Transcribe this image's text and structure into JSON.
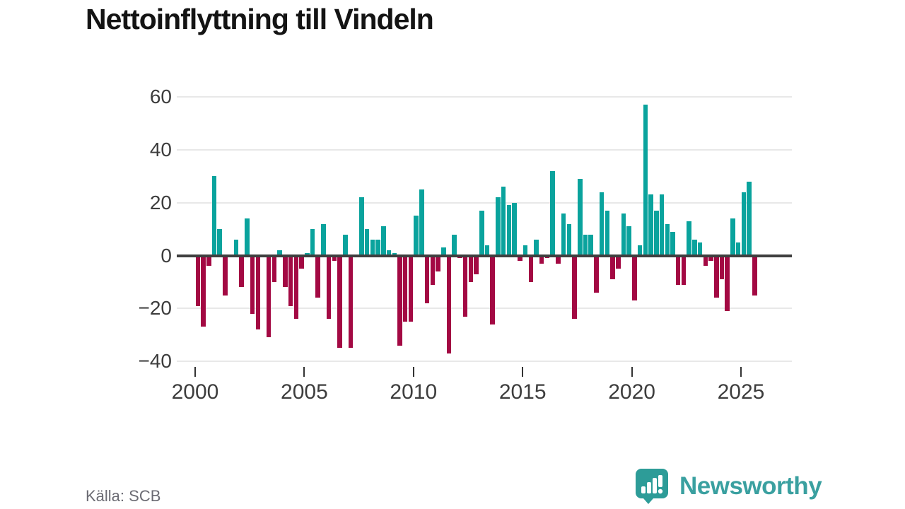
{
  "header": {
    "title": "Nettoinflyttning till Vindeln"
  },
  "footer": {
    "source": "Källa: SCB",
    "brand": "Newsworthy"
  },
  "chart_data": {
    "type": "bar",
    "title": "Nettoinflyttning till Vindeln",
    "source": "Källa: SCB",
    "x_unit": "quarter",
    "start_period": "2000-Q1",
    "end_period": "2025-Q3",
    "values": [
      -19,
      -27,
      -4,
      30,
      10,
      -15,
      0,
      6,
      -12,
      14,
      -22,
      -28,
      0,
      -31,
      -10,
      2,
      -12,
      -19,
      -24,
      -5,
      1,
      10,
      -16,
      12,
      -24,
      -2,
      -35,
      8,
      -35,
      0,
      22,
      10,
      6,
      6,
      11,
      2,
      1,
      -34,
      -25,
      -25,
      15,
      25,
      -18,
      -11,
      -6,
      3,
      -37,
      8,
      -1,
      -23,
      -10,
      -7,
      17,
      4,
      -26,
      22,
      26,
      19,
      20,
      -2,
      4,
      -10,
      6,
      -3,
      -1,
      32,
      -3,
      16,
      12,
      -24,
      29,
      8,
      8,
      -14,
      24,
      17,
      -9,
      -5,
      16,
      11,
      -17,
      4,
      57,
      23,
      17,
      23,
      12,
      9,
      -11,
      -11,
      13,
      6,
      5,
      -4,
      -2,
      -16,
      -9,
      -21,
      14,
      5,
      24,
      28,
      -15
    ],
    "axis": {
      "y_ticks": [
        60,
        40,
        20,
        0,
        -20,
        -40
      ],
      "ylim": [
        -42,
        62
      ],
      "x_ticks": [
        2000,
        2005,
        2010,
        2015,
        2020,
        2025
      ],
      "grid": true,
      "legend": "none"
    },
    "colors": {
      "positive": "#0aa39d",
      "negative": "#a30943",
      "zero_line": "#3f3f3f",
      "gridline": "#e8e8e8",
      "tick_label": "#3d3d3d"
    }
  },
  "brand_colors": {
    "badge": "#2d9c98",
    "text": "#3aa0a0"
  }
}
